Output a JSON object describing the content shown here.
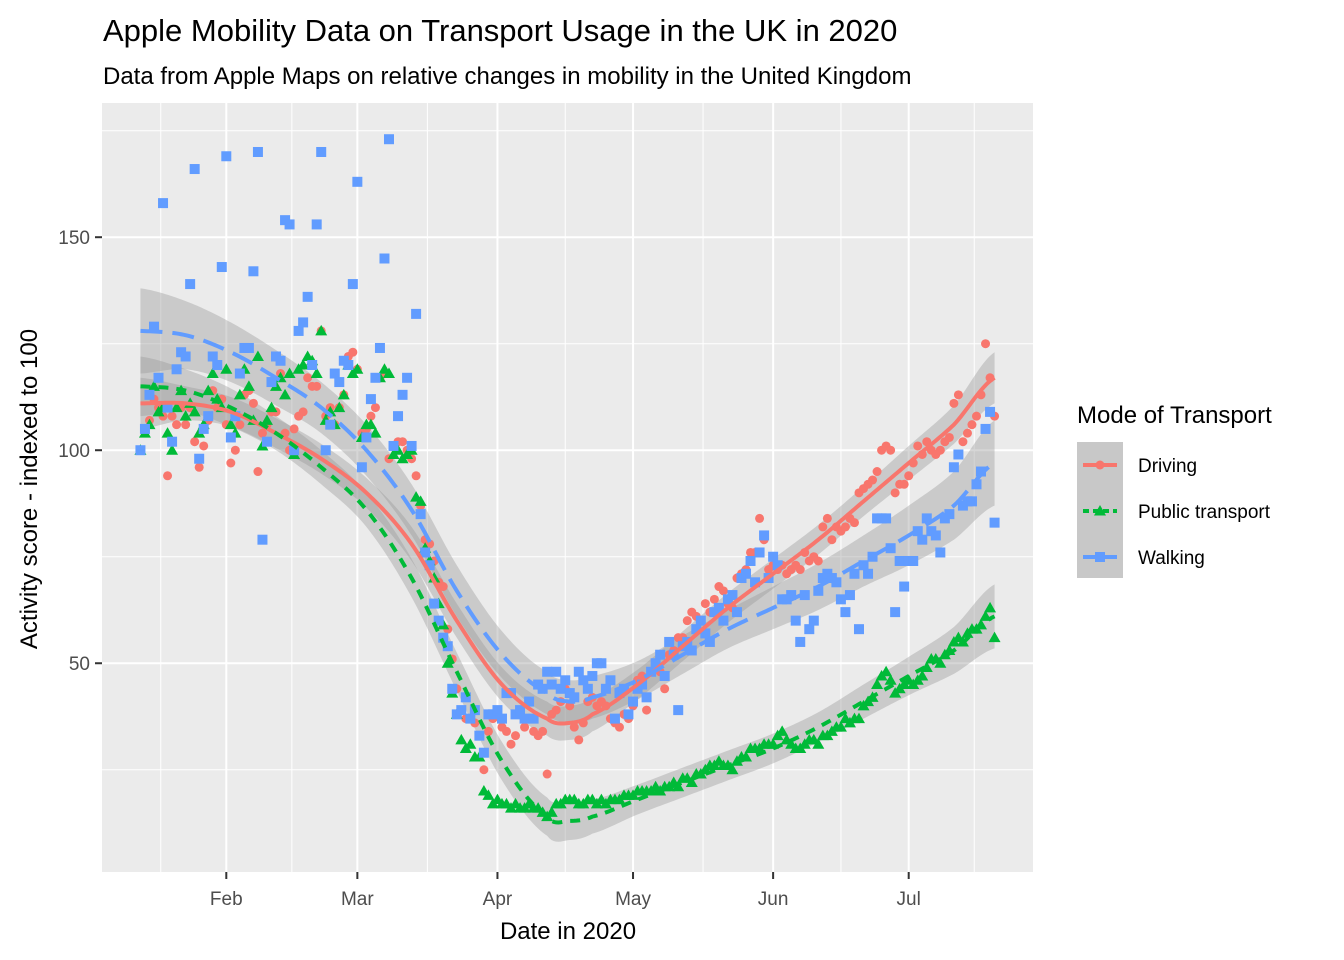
{
  "chart_data": {
    "type": "scatter",
    "title": "Apple Mobility Data on Transport Usage in the UK in 2020",
    "subtitle": "Data from Apple Maps on relative changes in mobility in the United Kingdom",
    "xlabel": "Date in 2020",
    "ylabel": "Activity score - indexed to 100",
    "x_start_date": "2020-01-13",
    "x_end_date": "2020-07-20",
    "x_ticks": [
      {
        "label": "Feb",
        "date": "2020-02-01"
      },
      {
        "label": "Mar",
        "date": "2020-03-01"
      },
      {
        "label": "Apr",
        "date": "2020-04-01"
      },
      {
        "label": "May",
        "date": "2020-05-01"
      },
      {
        "label": "Jun",
        "date": "2020-06-01"
      },
      {
        "label": "Jul",
        "date": "2020-07-01"
      }
    ],
    "y_ticks": [
      50,
      100,
      150
    ],
    "ylim": [
      1,
      181.5
    ],
    "grid": true,
    "legend": {
      "title": "Mode of Transport",
      "position": "right"
    },
    "smoothing": "loess with 95% confidence band",
    "series": [
      {
        "name": "Driving",
        "color": "#F8766D",
        "marker": "circle",
        "line": "solid",
        "values": [
          100,
          105,
          107,
          112,
          110,
          108,
          94,
          108,
          106,
          110,
          106,
          110,
          102,
          96,
          101,
          107,
          114,
          110,
          112,
          106,
          97,
          100,
          106,
          113,
          114,
          111,
          95,
          104,
          106,
          109,
          109,
          118,
          104,
          100,
          105,
          108,
          109,
          117,
          115,
          115,
          128,
          108,
          110,
          106,
          110,
          113,
          122,
          123,
          119,
          104,
          105,
          108,
          110,
          117,
          118,
          98,
          101,
          102,
          102,
          100,
          98,
          94,
          87,
          79,
          78,
          74,
          69,
          68,
          58,
          51,
          44,
          39,
          37,
          37,
          36,
          33,
          25,
          34,
          37,
          38,
          35,
          34,
          31,
          33,
          38,
          35,
          37,
          34,
          33,
          34,
          24,
          38,
          39,
          41,
          44,
          40,
          35,
          32,
          36,
          41,
          42,
          40,
          41,
          40,
          37,
          36,
          35,
          38,
          37,
          40,
          46,
          47,
          39,
          48,
          50,
          48,
          44,
          52,
          53,
          56,
          56,
          60,
          62,
          61,
          60,
          64,
          62,
          65,
          68,
          67,
          64,
          63,
          70,
          71,
          72,
          76,
          76,
          84,
          79,
          72,
          73,
          72,
          73,
          71,
          72,
          73,
          72,
          76,
          74,
          75,
          74,
          82,
          84,
          79,
          82,
          81,
          82,
          84,
          83,
          90,
          91,
          92,
          93,
          95,
          100,
          101,
          100,
          90,
          92,
          92,
          94,
          97,
          101,
          99,
          102,
          100,
          99,
          100,
          102,
          103,
          111,
          113,
          102,
          104,
          106,
          108,
          113,
          125,
          117,
          108
        ],
        "smooth": {
          "days": [
            0,
            10,
            20,
            30,
            40,
            50,
            60,
            70,
            80,
            90,
            95,
            100,
            110,
            120,
            130,
            140,
            150,
            160,
            170,
            180,
            189
          ],
          "fit": [
            111,
            111,
            109,
            104,
            98,
            90,
            78,
            60,
            45,
            37,
            36,
            38,
            45,
            54,
            63,
            71,
            79,
            88,
            97,
            106,
            117
          ],
          "ci_half": [
            6,
            4,
            3.5,
            3.5,
            3.5,
            3.5,
            4,
            4,
            4,
            4,
            4,
            4,
            3.5,
            3.5,
            3.5,
            3.5,
            3.5,
            3.5,
            4,
            4.5,
            6
          ]
        }
      },
      {
        "name": "Public transport",
        "color": "#00BA38",
        "marker": "triangle",
        "line": "dashed",
        "values": [
          100,
          104,
          106,
          115,
          109,
          110,
          104,
          100,
          110,
          114,
          108,
          111,
          109,
          104,
          106,
          114,
          118,
          112,
          110,
          119,
          106,
          104,
          113,
          119,
          115,
          107,
          122,
          101,
          107,
          110,
          115,
          117,
          113,
          118,
          99,
          119,
          120,
          122,
          121,
          118,
          128,
          107,
          109,
          106,
          110,
          113,
          120,
          118,
          119,
          103,
          106,
          106,
          104,
          117,
          119,
          118,
          99,
          100,
          98,
          99,
          100,
          89,
          88,
          77,
          74,
          70,
          64,
          59,
          50,
          43,
          38,
          32,
          30,
          31,
          28,
          28,
          20,
          19,
          17,
          18,
          17,
          17,
          16,
          17,
          16,
          16,
          17,
          16,
          16,
          15,
          14,
          15,
          17,
          17,
          18,
          18,
          18,
          17,
          17,
          18,
          18,
          17,
          18,
          17,
          18,
          18,
          18,
          19,
          19,
          19,
          20,
          20,
          20,
          20,
          21,
          20,
          21,
          21,
          22,
          21,
          23,
          23,
          22,
          24,
          24,
          25,
          26,
          26,
          27,
          26,
          26,
          25,
          27,
          28,
          28,
          30,
          30,
          30,
          31,
          31,
          31,
          33,
          34,
          32,
          31,
          30,
          30,
          31,
          32,
          32,
          31,
          33,
          33,
          34,
          35,
          35,
          37,
          36,
          37,
          37,
          40,
          41,
          42,
          45,
          47,
          48,
          46,
          43,
          44,
          45,
          46,
          45,
          46,
          47,
          49,
          51,
          51,
          50,
          52,
          53,
          55,
          56,
          55,
          57,
          58,
          58,
          59,
          61,
          63,
          56
        ],
        "smooth": {
          "days": [
            0,
            10,
            20,
            30,
            40,
            50,
            60,
            70,
            80,
            90,
            95,
            100,
            110,
            120,
            130,
            140,
            150,
            160,
            170,
            180,
            189
          ],
          "fit": [
            115,
            114,
            110,
            104,
            96,
            86,
            70,
            48,
            27,
            14,
            13,
            14,
            18,
            22,
            26,
            30,
            35,
            41,
            47,
            53,
            61
          ],
          "ci_half": [
            7,
            5,
            4.5,
            4,
            4,
            4,
            4.5,
            4.5,
            4.5,
            4.5,
            4.5,
            4,
            3.5,
            3.5,
            3.5,
            3.5,
            3.5,
            4,
            4.5,
            5.5,
            7.5
          ]
        }
      },
      {
        "name": "Walking",
        "color": "#619CFF",
        "marker": "square",
        "line": "longdash",
        "values": [
          100,
          105,
          113,
          129,
          117,
          158,
          110,
          102,
          119,
          123,
          122,
          139,
          166,
          98,
          105,
          108,
          122,
          120,
          143,
          169,
          103,
          108,
          118,
          124,
          124,
          142,
          170,
          79,
          102,
          116,
          122,
          121,
          154,
          153,
          100,
          128,
          130,
          136,
          120,
          153,
          170,
          100,
          106,
          118,
          116,
          121,
          120,
          139,
          163,
          96,
          103,
          112,
          117,
          124,
          145,
          173,
          101,
          108,
          113,
          117,
          101,
          132,
          85,
          76,
          73,
          64,
          60,
          56,
          54,
          44,
          38,
          39,
          42,
          37,
          39,
          33,
          29,
          38,
          38,
          39,
          37,
          43,
          43,
          38,
          39,
          37,
          41,
          37,
          45,
          44,
          48,
          45,
          48,
          44,
          46,
          43,
          42,
          48,
          46,
          44,
          47,
          50,
          50,
          44,
          46,
          37,
          43,
          44,
          38,
          41,
          44,
          45,
          42,
          48,
          50,
          52,
          47,
          55,
          52,
          39,
          54,
          55,
          53,
          58,
          60,
          57,
          55,
          62,
          63,
          60,
          65,
          66,
          62,
          70,
          71,
          74,
          69,
          76,
          80,
          70,
          75,
          73,
          65,
          65,
          66,
          60,
          55,
          66,
          58,
          60,
          67,
          70,
          71,
          70,
          69,
          65,
          62,
          66,
          71,
          58,
          73,
          71,
          75,
          84,
          84,
          84,
          77,
          62,
          74,
          68,
          74,
          74,
          81,
          79,
          84,
          81,
          80,
          76,
          84,
          85,
          96,
          99,
          87,
          88,
          88,
          92,
          95,
          105,
          109,
          83
        ],
        "smooth": {
          "days": [
            0,
            10,
            20,
            30,
            40,
            50,
            60,
            70,
            80,
            90,
            95,
            100,
            110,
            120,
            130,
            140,
            150,
            160,
            170,
            180,
            189
          ],
          "fit": [
            128,
            127,
            123,
            117,
            110,
            100,
            86,
            67,
            52,
            43,
            41,
            42,
            46,
            52,
            58,
            63,
            68,
            74,
            80,
            87,
            97
          ],
          "ci_half": [
            10,
            8,
            7,
            6.5,
            6,
            6,
            6,
            6,
            5.5,
            5,
            5,
            5,
            4.5,
            4.5,
            4.5,
            5,
            5.5,
            6,
            7,
            8,
            10
          ]
        }
      }
    ]
  }
}
